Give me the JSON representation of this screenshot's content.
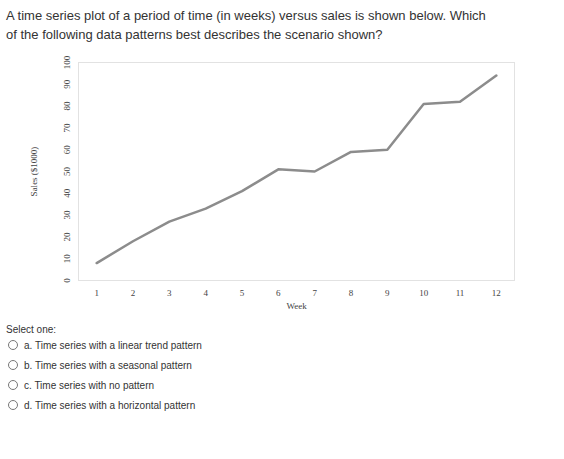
{
  "question_lines": [
    "A time series plot of a period of time (in weeks) versus sales is shown below. Which",
    "of the following data patterns best describes the scenario shown?"
  ],
  "chart_data": {
    "type": "line",
    "x_label": "Week",
    "y_label": "Sales ($1000)",
    "x": [
      1,
      2,
      3,
      4,
      5,
      6,
      7,
      8,
      9,
      10,
      11,
      12
    ],
    "values": [
      8,
      18,
      27,
      33,
      41,
      51,
      50,
      59,
      60,
      81,
      82,
      94
    ],
    "color": "#8c8c8c",
    "xlim": [
      0.5,
      12.5
    ],
    "xticks": [
      1,
      2,
      3,
      4,
      5,
      6,
      7,
      8,
      9,
      10,
      11,
      12
    ],
    "ylim": [
      0,
      100
    ],
    "yticks": [
      0,
      10,
      20,
      30,
      40,
      50,
      60,
      70,
      80,
      90,
      100
    ],
    "grid": false
  },
  "prompt": "Select one:",
  "options": [
    "a. Time series with a linear trend pattern",
    "b. Time series with a seasonal pattern",
    "c. Time series with no pattern",
    "d. Time series with a horizontal pattern"
  ]
}
